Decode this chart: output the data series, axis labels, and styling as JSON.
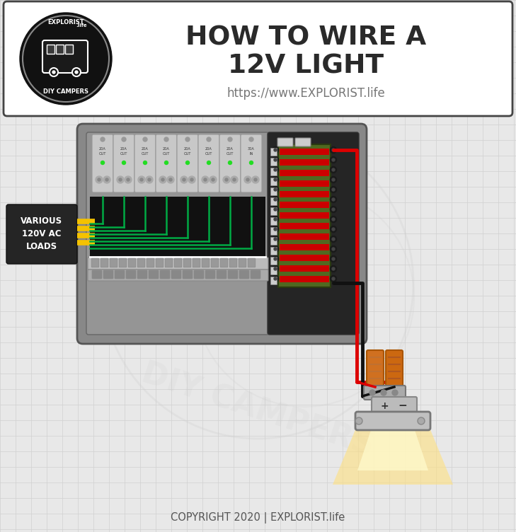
{
  "title_line1": "HOW TO WIRE A",
  "title_line2": "12V LIGHT",
  "subtitle": "https://www.EXPLORIST.life",
  "copyright": "COPYRIGHT 2020 | EXPLORIST.life",
  "bg_color": "#e8e8e8",
  "grid_color": "#d0d0d0",
  "header_bg": "#ffffff",
  "panel_bg": "#888888",
  "panel_dark": "#2a2a2a",
  "breaker_gray": "#c8c8c8",
  "bus_green": "#506820",
  "red_wire": "#dd0000",
  "black_wire": "#111111",
  "yellow_wire": "#f5c200",
  "green_wire": "#00aa44",
  "fuse_red": "#cc0000",
  "loads_bg": "#252525",
  "connector_orange": "#d07020",
  "light_gray": "#c0c0c0",
  "glow_yellow": "#ffe080",
  "glow_light": "#fffacc"
}
